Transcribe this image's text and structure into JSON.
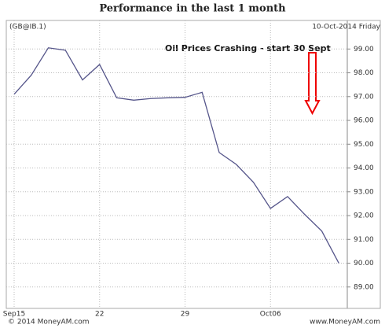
{
  "chart_data": {
    "type": "line",
    "title": "Performance in the last 1 month",
    "symbol": "(GB@IB.1)",
    "date": "10-Oct-2014 Friday",
    "annotation": "Oil Prices Crashing - start 30 Sept",
    "footer_left": "© 2014 MoneyAM.com",
    "footer_right": "www.MoneyAM.com",
    "categories": [
      "Sep15",
      null,
      null,
      null,
      null,
      "22",
      null,
      null,
      null,
      null,
      "29",
      null,
      null,
      null,
      null,
      "Oct06",
      null,
      null,
      null,
      null
    ],
    "series": [
      {
        "name": "GB@IB.1",
        "color": "#55558a",
        "values": [
          97.1,
          97.9,
          99.05,
          98.95,
          97.7,
          98.35,
          96.95,
          96.85,
          96.92,
          96.95,
          96.97,
          97.18,
          94.65,
          94.15,
          93.4,
          92.3,
          92.8,
          92.05,
          91.35,
          90.0
        ]
      }
    ],
    "ylim": [
      88.1,
      100.2
    ],
    "yticks": [
      {
        "value": 89,
        "label": "89.00"
      },
      {
        "value": 90,
        "label": "90.00"
      },
      {
        "value": 91,
        "label": "91.00"
      },
      {
        "value": 92,
        "label": "92.00"
      },
      {
        "value": 93,
        "label": "93.00"
      },
      {
        "value": 94,
        "label": "94.00"
      },
      {
        "value": 95,
        "label": "95.00"
      },
      {
        "value": 96,
        "label": "96.00"
      },
      {
        "value": 97,
        "label": "97.00"
      },
      {
        "value": 98,
        "label": "98.00"
      },
      {
        "value": 99,
        "label": "99.00"
      }
    ],
    "grid": true
  }
}
